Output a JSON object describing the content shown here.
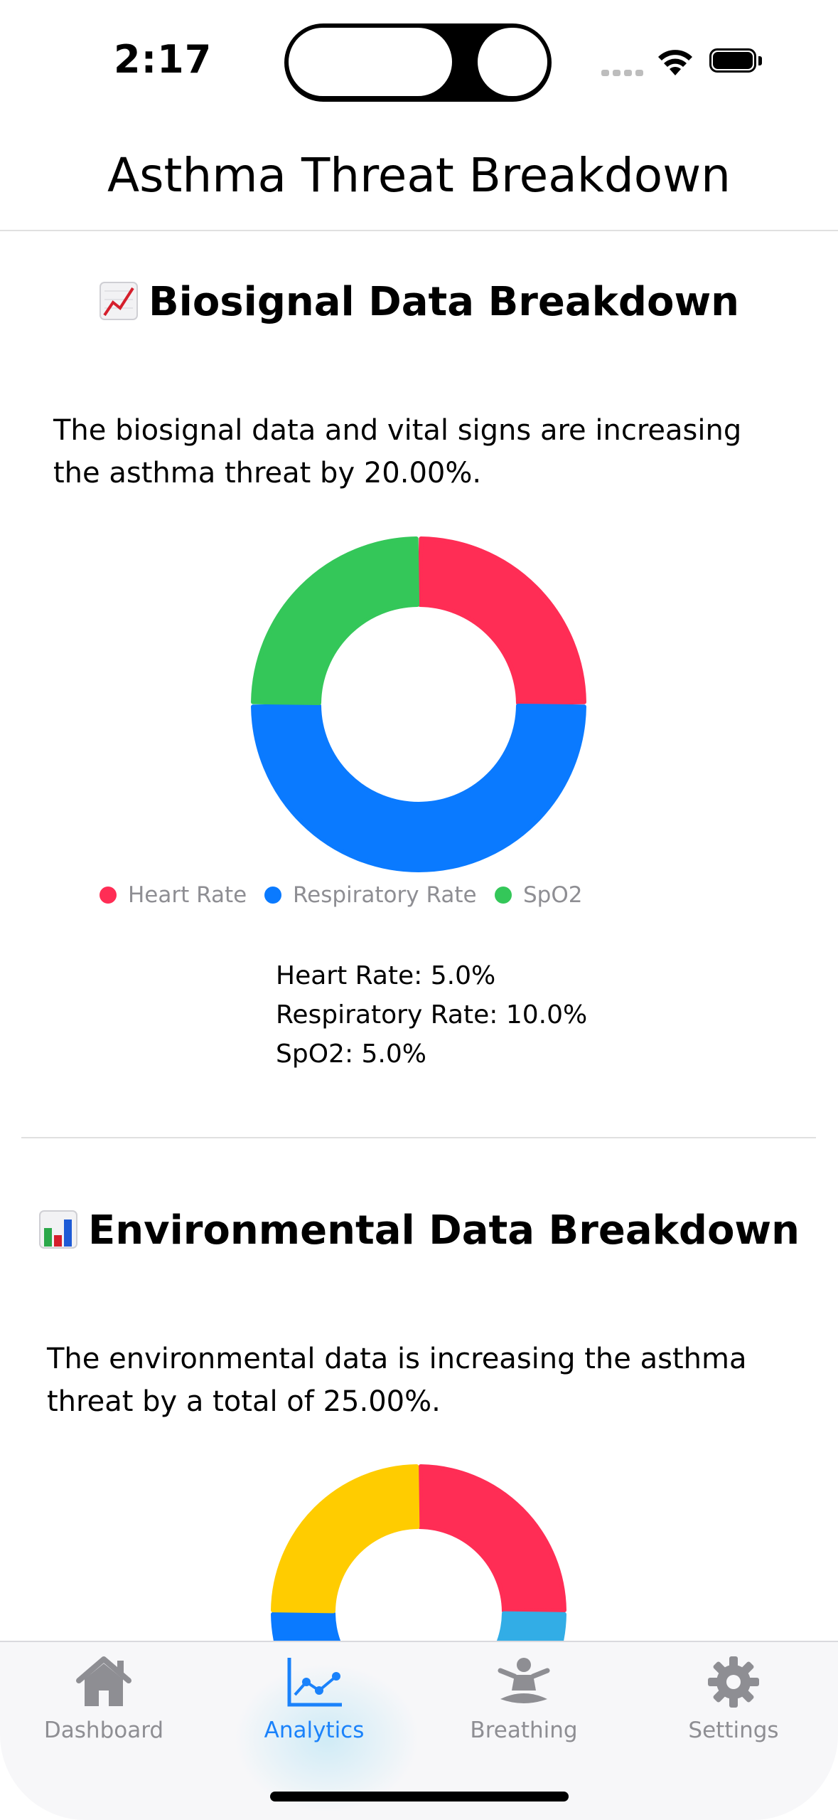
{
  "status_bar": {
    "time": "2:17"
  },
  "nav": {
    "title": "Asthma Threat Breakdown"
  },
  "biosignal": {
    "emoji": "chart-increasing-icon",
    "heading": "Biosignal Data Breakdown",
    "description_line1": "The biosignal data and vital signs are increasing",
    "description_line2": "the asthma threat by 20.00%.",
    "legend": [
      {
        "label": "Heart Rate",
        "color": "#ff2d55"
      },
      {
        "label": "Respiratory Rate",
        "color": "#0a7aff"
      },
      {
        "label": "SpO2",
        "color": "#34c759"
      }
    ],
    "values": [
      "Heart Rate: 5.0%",
      "Respiratory Rate: 10.0%",
      "SpO2: 5.0%"
    ]
  },
  "environmental": {
    "emoji": "bar-chart-icon",
    "heading": "Environmental Data Breakdown",
    "description_line1": "The environmental data is increasing the asthma",
    "description_line2": "threat by a total of 25.00%."
  },
  "chart_data": [
    {
      "type": "pie",
      "title": "",
      "donut": true,
      "categories": [
        "Heart Rate",
        "Respiratory Rate",
        "SpO2"
      ],
      "values": [
        5.0,
        10.0,
        5.0
      ],
      "colors": [
        "#ff2d55",
        "#0a7aff",
        "#34c759"
      ],
      "legend": "bottom"
    },
    {
      "type": "pie",
      "title": "",
      "donut": true,
      "note_visible": "partially visible (cropped by tab bar)",
      "segments_visible": [
        {
          "color": "#ff2d55",
          "value": 5
        },
        {
          "color": "#32ade6",
          "value": 5
        },
        {
          "color": "#0a7aff",
          "value": 5
        },
        {
          "color": "#ffcc00",
          "value": 5
        }
      ]
    }
  ],
  "tabs": [
    {
      "label": "Dashboard",
      "icon": "house-icon",
      "active": false
    },
    {
      "label": "Analytics",
      "icon": "line-chart-icon",
      "active": true
    },
    {
      "label": "Breathing",
      "icon": "meditation-icon",
      "active": false
    },
    {
      "label": "Settings",
      "icon": "gear-icon",
      "active": false
    }
  ],
  "colors": {
    "accent": "#1a82fb",
    "inactive": "#8e8e93"
  }
}
